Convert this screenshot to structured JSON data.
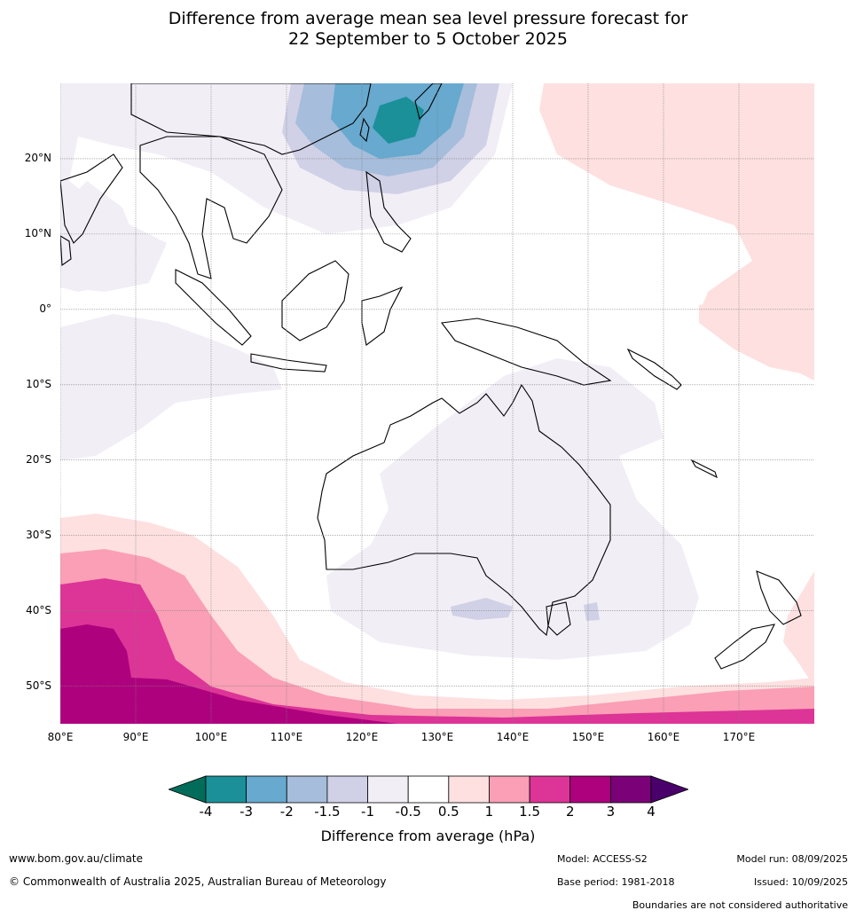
{
  "title": {
    "line1": "Difference from average mean sea level pressure forecast for",
    "line2": "22 September to 5 October 2025"
  },
  "map": {
    "lon_range": [
      80,
      180
    ],
    "lat_range": [
      -55,
      30
    ],
    "lat_ticks": [
      {
        "value": 20,
        "label": "20°N"
      },
      {
        "value": 10,
        "label": "10°N"
      },
      {
        "value": 0,
        "label": "0°"
      },
      {
        "value": -10,
        "label": "10°S"
      },
      {
        "value": -20,
        "label": "20°S"
      },
      {
        "value": -30,
        "label": "30°S"
      },
      {
        "value": -40,
        "label": "40°S"
      },
      {
        "value": -50,
        "label": "50°S"
      }
    ],
    "lon_ticks": [
      {
        "value": 80,
        "label": "80°E"
      },
      {
        "value": 90,
        "label": "90°E"
      },
      {
        "value": 100,
        "label": "100°E"
      },
      {
        "value": 110,
        "label": "110°E"
      },
      {
        "value": 120,
        "label": "120°E"
      },
      {
        "value": 130,
        "label": "130°E"
      },
      {
        "value": 140,
        "label": "140°E"
      },
      {
        "value": 150,
        "label": "150°E"
      },
      {
        "value": 160,
        "label": "160°E"
      },
      {
        "value": 170,
        "label": "170°E"
      }
    ],
    "grid": true
  },
  "colorbar": {
    "label": "Difference from average (hPa)",
    "ticks": [
      "-4",
      "-3",
      "-2",
      "-1.5",
      "-1",
      "-0.5",
      "0.5",
      "1",
      "1.5",
      "2",
      "3",
      "4"
    ],
    "colors": [
      "#016c59",
      "#1b9098",
      "#67a9cf",
      "#a6bddb",
      "#d0d1e6",
      "#f1eef6",
      "#ffffff",
      "#fee0e0",
      "#fa9fb5",
      "#dd3497",
      "#ae017e",
      "#7a0177",
      "#49006a"
    ]
  },
  "footer": {
    "url": "www.bom.gov.au/climate",
    "copyright": "© Commonwealth of Australia 2025, Australian Bureau of Meteorology",
    "model": "Model: ACCESS-S2",
    "base_period": "Base period: 1981-2018",
    "model_run": "Model run: 08/09/2025",
    "issued": "Issued: 10/09/2025",
    "disclaimer": "Boundaries are not considered authoritative"
  }
}
